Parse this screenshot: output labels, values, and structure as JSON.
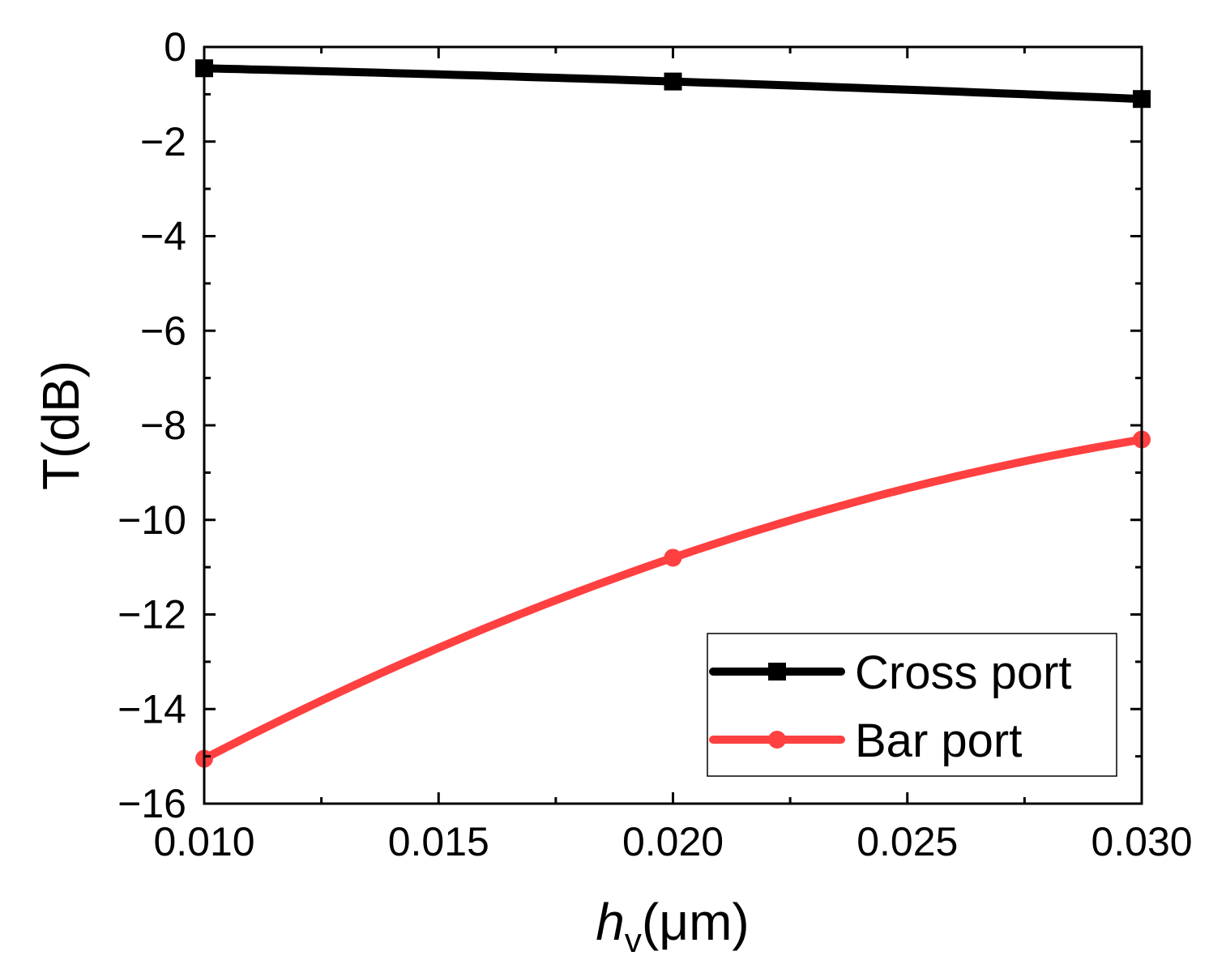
{
  "chart_data": {
    "type": "line",
    "xlabel": {
      "main": "h",
      "sub": "v",
      "unit": "(μm)"
    },
    "ylabel": "T(dB)",
    "xlim": [
      0.01,
      0.03
    ],
    "ylim": [
      -16,
      0
    ],
    "xticks": [
      "0.010",
      "0.015",
      "0.020",
      "0.025",
      "0.030"
    ],
    "yticks": [
      "0",
      "−2",
      "−4",
      "−6",
      "−8",
      "−10",
      "−12",
      "−14",
      "−16"
    ],
    "grid": false,
    "legend_position": "bottom-right",
    "series": [
      {
        "name": "Cross port",
        "color": "#000000",
        "marker": "square",
        "x": [
          0.01,
          0.02,
          0.03
        ],
        "y": [
          -0.45,
          -0.73,
          -1.1
        ]
      },
      {
        "name": "Bar port",
        "color": "#ff4040",
        "marker": "circle",
        "x": [
          0.01,
          0.02,
          0.03
        ],
        "y": [
          -15.05,
          -10.8,
          -8.3
        ]
      }
    ]
  }
}
